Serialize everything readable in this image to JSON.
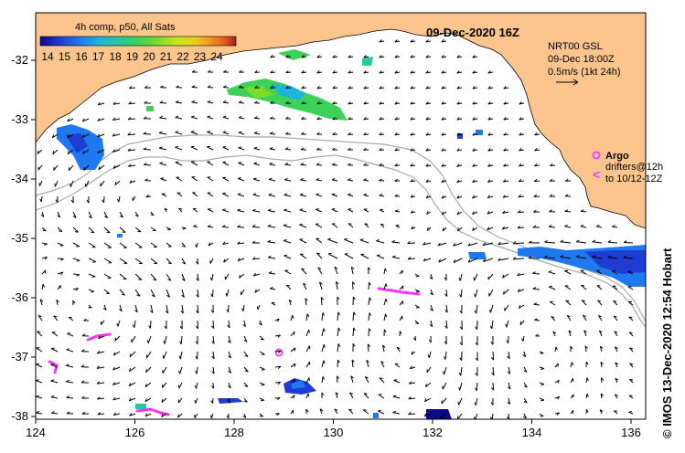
{
  "map": {
    "date_title": "09-Dec-2020 16Z",
    "sst_title": "4h comp, p50, All Sats",
    "colorbar_ticks": [
      "14",
      "15",
      "16",
      "17",
      "18",
      "19",
      "20",
      "21",
      "22",
      "23",
      "24"
    ],
    "colorbar_colors": [
      "#0a0a8c",
      "#1e3cd2",
      "#1e78f0",
      "#1eb4dc",
      "#28c8a0",
      "#3cd25a",
      "#78dc28",
      "#c8e61e",
      "#f0c81e",
      "#f08c1e",
      "#e6501e",
      "#a01e1e"
    ],
    "model_info": [
      "NRT00 GSL",
      "09-Dec 18:00Z",
      "0.5m/s (1kt 24h)"
    ],
    "argo_label": "Argo",
    "drifter_lines": [
      "drifters@12h",
      "to 10/12-12Z"
    ],
    "credit": "© IMOS 13-Dec-2020 12:54 Hobart",
    "lon_ticks": [
      "124",
      "126",
      "128",
      "130",
      "132",
      "134",
      "136"
    ],
    "lat_ticks": [
      "-32",
      "-33",
      "-34",
      "-35",
      "-36",
      "-37",
      "-38"
    ],
    "land_color": "#fcc58e",
    "drifter_color": "#ff33ff",
    "contour_color": "#aaaaaa"
  }
}
